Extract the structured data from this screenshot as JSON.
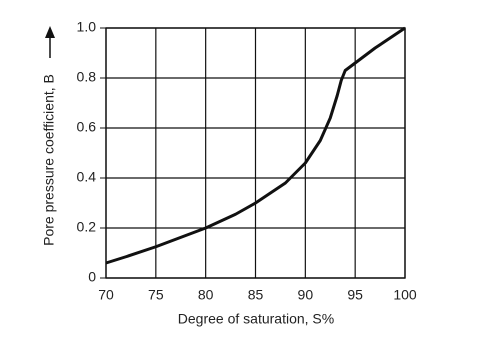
{
  "chart_data": {
    "type": "line",
    "xlabel": "Degree of saturation, S%",
    "ylabel": "Pore pressure coefficient, B",
    "x": [
      70,
      72,
      75,
      78,
      80,
      83,
      85,
      88,
      90,
      91.5,
      92.5,
      93.2,
      93.6,
      94,
      95,
      97,
      100
    ],
    "values": [
      0.06,
      0.085,
      0.125,
      0.17,
      0.2,
      0.255,
      0.3,
      0.38,
      0.46,
      0.55,
      0.64,
      0.73,
      0.79,
      0.83,
      0.86,
      0.92,
      1.0
    ],
    "color": "#111111",
    "xlim": [
      70,
      100
    ],
    "xticks": [
      70,
      75,
      80,
      85,
      90,
      95,
      100
    ],
    "ylim": [
      0,
      1
    ],
    "yticks": [
      0,
      0.2,
      0.4,
      0.6,
      0.8,
      {
        "value": 1,
        "label": "1.0"
      }
    ],
    "grid": true
  }
}
